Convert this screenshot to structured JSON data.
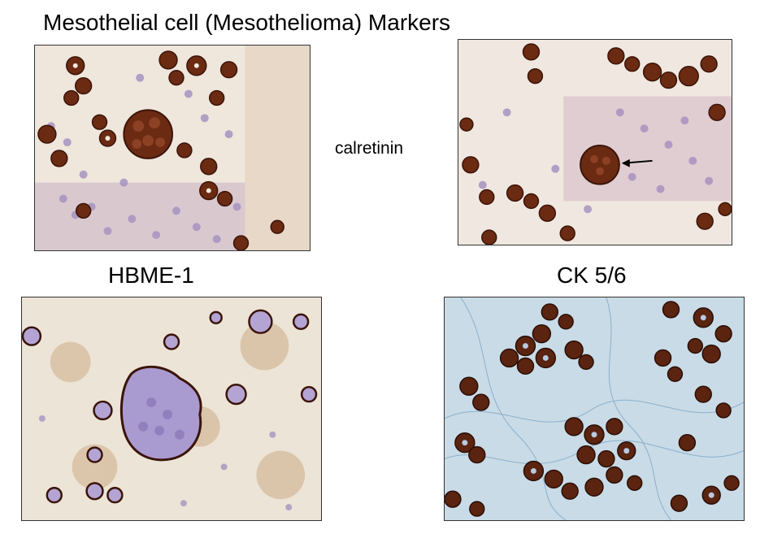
{
  "title": "Mesothelial cell (Mesothelioma) Markers",
  "stains": {
    "calretinin": "calretinin",
    "hbme1": "HBME-1",
    "ck56": "CK 5/6"
  },
  "colors": {
    "background": "#ffffff",
    "brown_stain": "#6b2a12",
    "hematoxylin": "#9a88b8",
    "ck_background": "#c9dbe6"
  }
}
